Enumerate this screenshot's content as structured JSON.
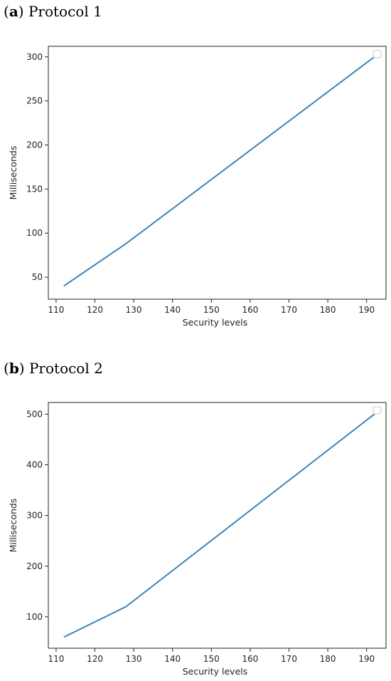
{
  "chart_data": [
    {
      "type": "line",
      "panel_letter": "a",
      "title": "Protocol 1",
      "xlabel": "Security levels",
      "ylabel": "Milliseconds",
      "xlim": [
        108,
        195
      ],
      "ylim": [
        25,
        312
      ],
      "xticks": [
        110,
        120,
        130,
        140,
        150,
        160,
        170,
        180,
        190
      ],
      "yticks": [
        50,
        100,
        150,
        200,
        250,
        300
      ],
      "series": [
        {
          "color": "#3a86b8",
          "x": [
            112,
            128,
            192
          ],
          "y": [
            40,
            88,
            300
          ]
        }
      ],
      "legend": "top-right",
      "grid": false
    },
    {
      "type": "line",
      "panel_letter": "b",
      "title": "Protocol 2",
      "xlabel": "Security levels",
      "ylabel": "Milliseconds",
      "xlim": [
        108,
        195
      ],
      "ylim": [
        38,
        523
      ],
      "xticks": [
        110,
        120,
        130,
        140,
        150,
        160,
        170,
        180,
        190
      ],
      "yticks": [
        100,
        200,
        300,
        400,
        500
      ],
      "series": [
        {
          "color": "#3a86b8",
          "x": [
            112,
            128,
            192
          ],
          "y": [
            60,
            120,
            500
          ]
        }
      ],
      "legend": "top-right",
      "grid": false
    }
  ]
}
